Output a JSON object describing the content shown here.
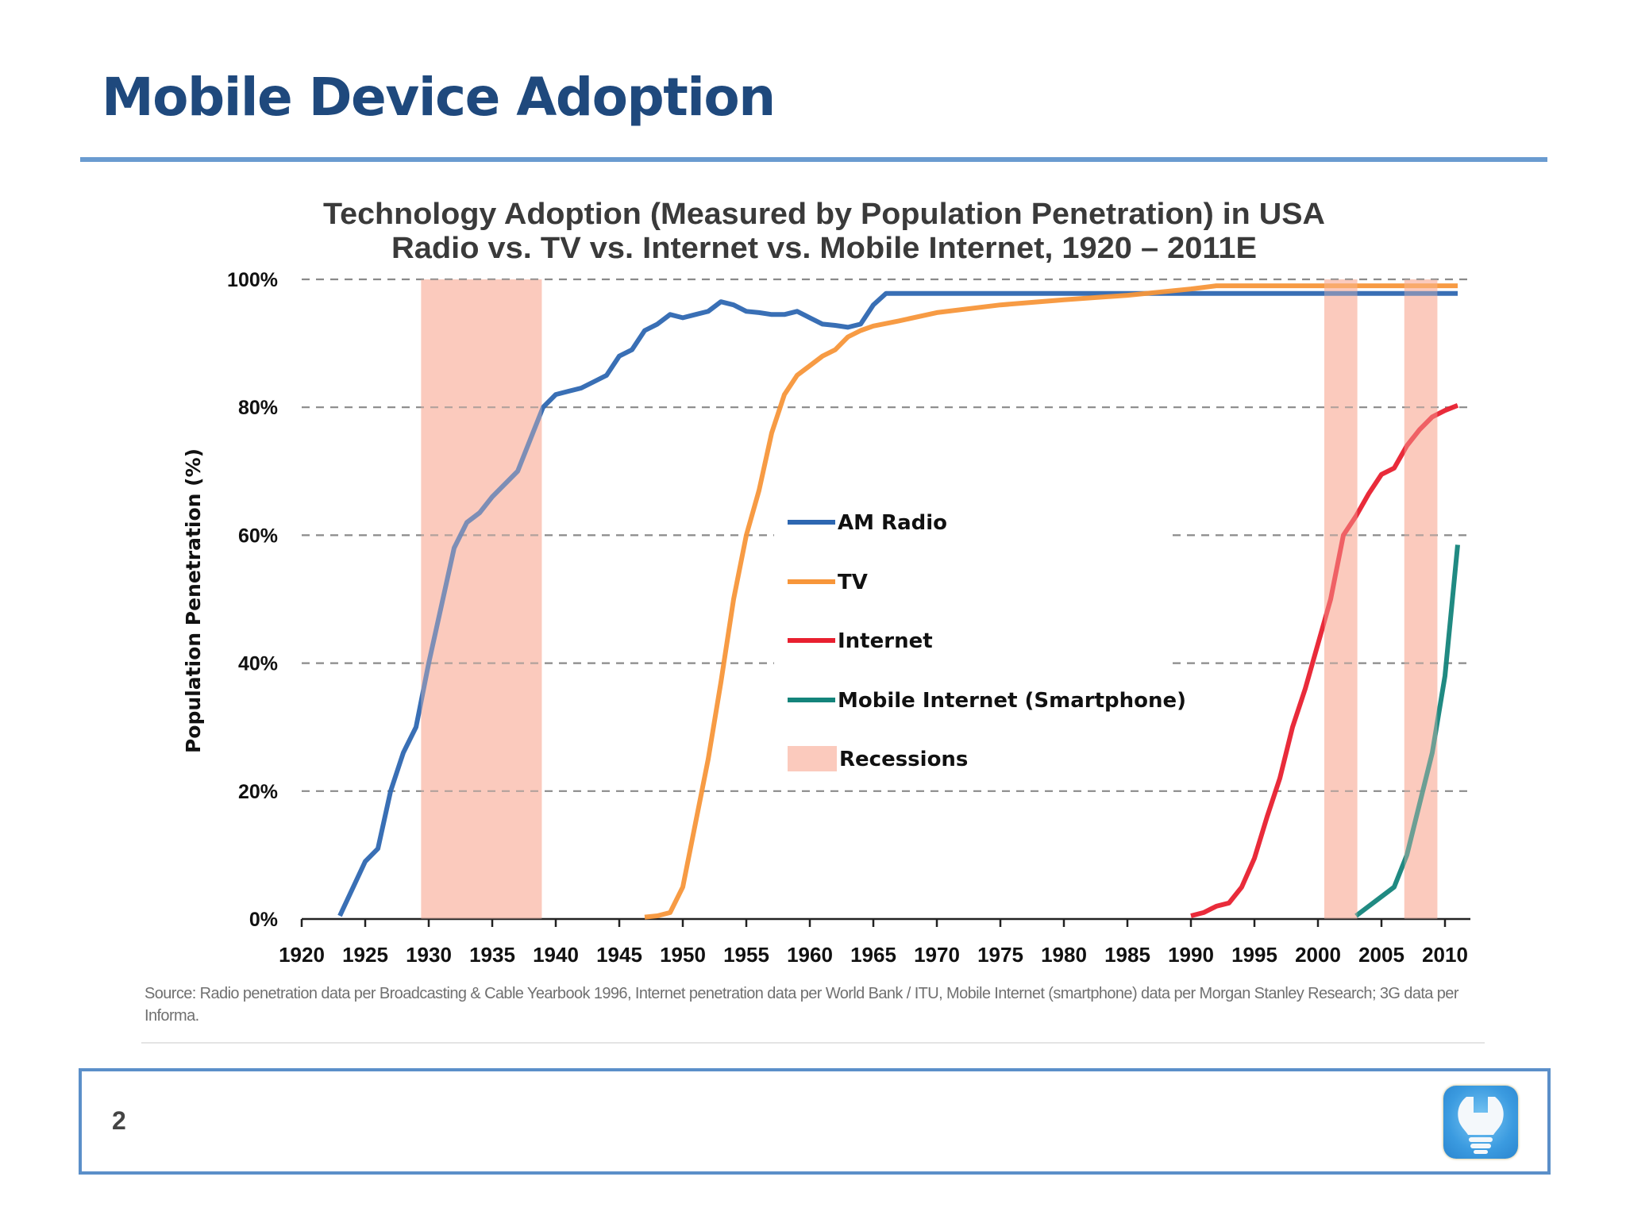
{
  "slide": {
    "title": "Mobile Device Adoption",
    "page_number": "2",
    "footer_icon": "lightbulb-wrench-icon",
    "colors": {
      "title": "#1f497d",
      "rule": "#6a9bd0",
      "footer_border": "#5b8fc9"
    }
  },
  "source_note": "Source: Radio penetration data per Broadcasting & Cable Yearbook 1996, Internet penetration data per World Bank / ITU, Mobile Internet (smartphone) data per Morgan Stanley Research; 3G data per Informa.",
  "chart_data": {
    "type": "line",
    "title": "Technology Adoption (Measured by Population Penetration) in USA",
    "subtitle": "Radio vs. TV vs. Internet vs. Mobile Internet, 1920 – 2011E",
    "xlabel": "",
    "ylabel": "Population Penetration (%)",
    "xlim": [
      1920,
      2012
    ],
    "ylim": [
      0,
      100
    ],
    "x_ticks": [
      "1920",
      "1925",
      "1930",
      "1935",
      "1940",
      "1945",
      "1950",
      "1955",
      "1960",
      "1965",
      "1970",
      "1975",
      "1980",
      "1985",
      "1990",
      "1995",
      "2000",
      "2005",
      "2010"
    ],
    "y_ticks": [
      "0%",
      "20%",
      "40%",
      "60%",
      "80%",
      "100%"
    ],
    "grid": "horizontal dashed",
    "legend_position": "center",
    "series": [
      {
        "name": "AM Radio",
        "color": "#2e67b1",
        "x": [
          1923,
          1925,
          1926,
          1927,
          1928,
          1929,
          1930,
          1931,
          1932,
          1933,
          1934,
          1935,
          1936,
          1937,
          1938,
          1939,
          1940,
          1941,
          1942,
          1943,
          1944,
          1945,
          1946,
          1947,
          1948,
          1949,
          1950,
          1951,
          1952,
          1953,
          1954,
          1955,
          1956,
          1957,
          1958,
          1959,
          1960,
          1961,
          1962,
          1963,
          1964,
          1965,
          1966,
          1970,
          1980,
          1990,
          2000,
          2011
        ],
        "y": [
          0.5,
          9,
          11,
          20,
          26,
          30,
          40,
          49,
          58,
          62,
          63.5,
          66,
          68,
          70,
          75,
          80,
          82,
          82.5,
          83,
          84,
          85,
          88,
          89,
          92,
          93,
          94.5,
          94,
          94.5,
          95,
          96.5,
          96,
          95,
          94.8,
          94.5,
          94.5,
          95,
          94,
          93,
          92.8,
          92.5,
          93,
          96,
          97.8,
          97.8,
          97.8,
          97.8,
          97.8,
          97.8
        ]
      },
      {
        "name": "TV",
        "color": "#f7963a",
        "x": [
          1947,
          1948,
          1949,
          1950,
          1951,
          1952,
          1953,
          1954,
          1955,
          1956,
          1957,
          1958,
          1959,
          1960,
          1961,
          1962,
          1963,
          1964,
          1965,
          1967,
          1970,
          1975,
          1980,
          1985,
          1990,
          1992,
          2000,
          2011
        ],
        "y": [
          0.3,
          0.5,
          1,
          5,
          15,
          25,
          37,
          50,
          60,
          67,
          76,
          82,
          85,
          86.5,
          88,
          89,
          91,
          92,
          92.7,
          93.5,
          94.8,
          96,
          96.8,
          97.5,
          98.5,
          99,
          99,
          99
        ]
      },
      {
        "name": "Internet",
        "color": "#e8202f",
        "x": [
          1990,
          1991,
          1992,
          1993,
          1994,
          1995,
          1996,
          1997,
          1998,
          1999,
          2000,
          2001,
          2002,
          2003,
          2004,
          2005,
          2006,
          2007,
          2008,
          2009,
          2010,
          2011
        ],
        "y": [
          0.5,
          1,
          2,
          2.5,
          5,
          9.5,
          16,
          22,
          30,
          36,
          43,
          50,
          60,
          63,
          66.5,
          69.5,
          70.5,
          74,
          76.5,
          78.5,
          79.5,
          80.3
        ]
      },
      {
        "name": "Mobile Internet (Smartphone)",
        "color": "#14847b",
        "x": [
          2003,
          2004,
          2005,
          2006,
          2007,
          2008,
          2009,
          2010,
          2011
        ],
        "y": [
          0.5,
          2,
          3.5,
          5,
          10,
          18,
          26,
          38,
          58.5
        ]
      }
    ],
    "recessions": {
      "name": "Recessions",
      "color": "#fbcabd",
      "periods": [
        [
          1929.4,
          1938.9
        ],
        [
          2000.5,
          2003.1
        ],
        [
          2006.8,
          2009.4
        ]
      ]
    }
  }
}
